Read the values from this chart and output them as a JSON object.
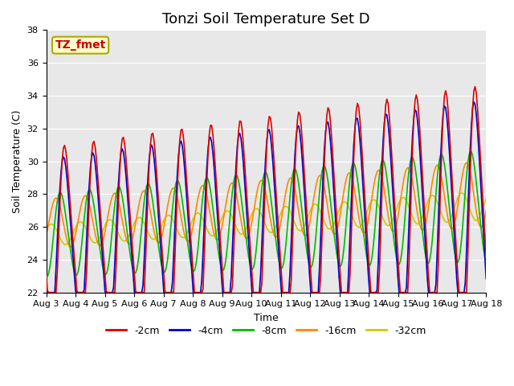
{
  "title": "Tonzi Soil Temperature Set D",
  "xlabel": "Time",
  "ylabel": "Soil Temperature (C)",
  "ylim": [
    22,
    38
  ],
  "legend_labels": [
    "-2cm",
    "-4cm",
    "-8cm",
    "-16cm",
    "-32cm"
  ],
  "legend_colors": [
    "#dd0000",
    "#0000cc",
    "#00bb00",
    "#ff8800",
    "#cccc00"
  ],
  "line_widths": [
    1.2,
    1.2,
    1.2,
    1.2,
    1.2
  ],
  "annotation_text": "TZ_fmet",
  "background_color": "#e8e8e8",
  "grid_color": "white",
  "title_fontsize": 13,
  "label_fontsize": 9,
  "tick_fontsize": 8
}
